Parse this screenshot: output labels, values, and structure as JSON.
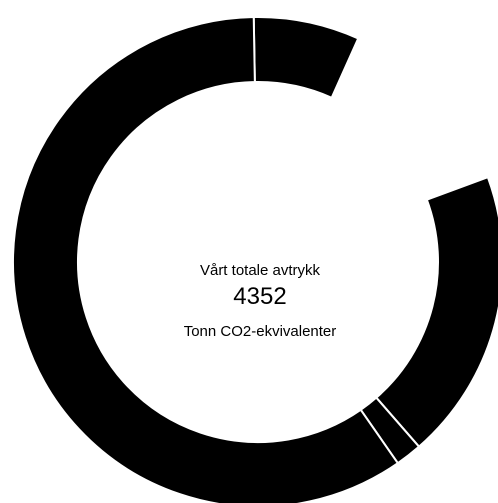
{
  "chart_data": {
    "type": "pie",
    "style": "donut",
    "center": {
      "title": "Vårt totale avtrykk",
      "value": "4352",
      "unit": "Tonn CO2-ekvivalenter"
    },
    "slices": [
      {
        "value": 8,
        "color": "#000000"
      },
      {
        "value": 22,
        "color": "#000000"
      },
      {
        "value": 2,
        "color": "#000000"
      },
      {
        "value": 68,
        "color": "#000000"
      }
    ],
    "gap_after_slice": 14.5,
    "separator_color": "#ffffff"
  }
}
